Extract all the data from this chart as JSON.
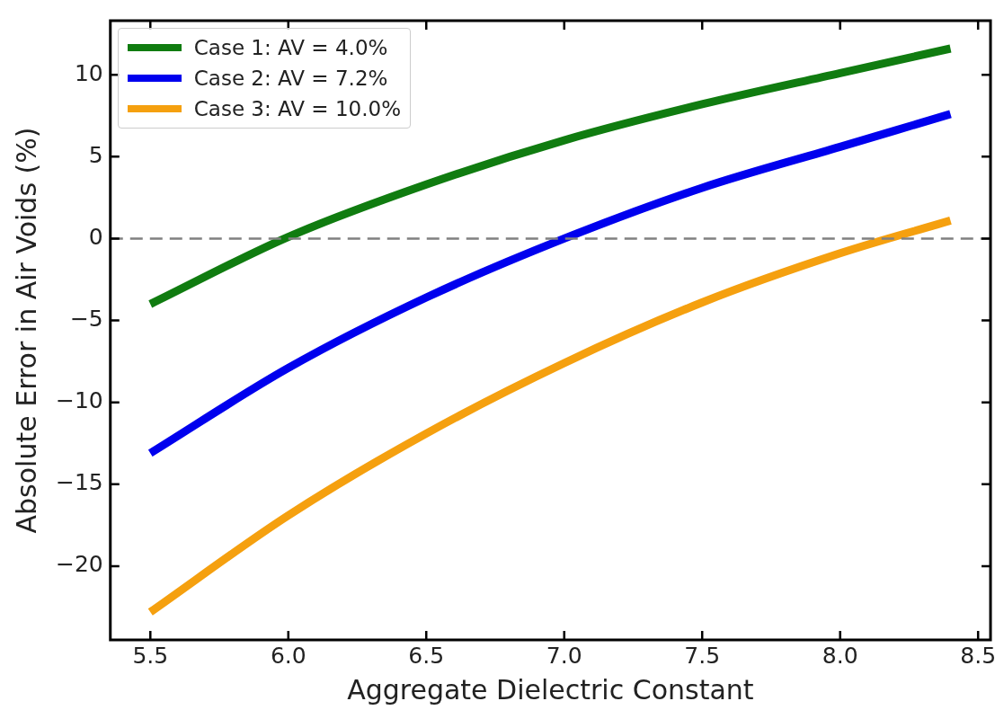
{
  "chart_data": {
    "type": "line",
    "xlabel": "Aggregate Dielectric Constant",
    "ylabel": "Absolute Error in Air Voids (%)",
    "x": [
      5.5,
      6.0,
      6.5,
      7.0,
      7.5,
      8.0,
      8.4
    ],
    "series": [
      {
        "name": "Case 1: AV = 4.0%",
        "color": "#107c10",
        "values": [
          -4.0,
          0.1,
          3.3,
          6.0,
          8.2,
          10.1,
          11.6
        ]
      },
      {
        "name": "Case 2: AV = 7.2%",
        "color": "#0000ee",
        "values": [
          -13.1,
          -7.9,
          -3.6,
          0.0,
          3.1,
          5.6,
          7.6
        ]
      },
      {
        "name": "Case 3: AV = 10.0%",
        "color": "#f5a00f",
        "values": [
          -22.8,
          -16.9,
          -11.9,
          -7.6,
          -3.9,
          -0.9,
          1.1
        ]
      }
    ],
    "xlim": [
      5.355,
      8.545
    ],
    "xticks": [
      {
        "value": 5.5,
        "label": "5.5"
      },
      {
        "value": 6.0,
        "label": "6.0"
      },
      {
        "value": 6.5,
        "label": "6.5"
      },
      {
        "value": 7.0,
        "label": "7.0"
      },
      {
        "value": 7.5,
        "label": "7.5"
      },
      {
        "value": 8.0,
        "label": "8.0"
      },
      {
        "value": 8.5,
        "label": "8.5"
      }
    ],
    "ylim": [
      -24.5,
      13.3
    ],
    "yticks": [
      {
        "value": -20,
        "label": "−20"
      },
      {
        "value": -15,
        "label": "−15"
      },
      {
        "value": -10,
        "label": "−10"
      },
      {
        "value": -5,
        "label": "−5"
      },
      0,
      5,
      10
    ],
    "ref_lines": [
      {
        "axis": "y",
        "value": 0,
        "color": "#808080",
        "line_style": "dashed"
      }
    ],
    "legend": "top left",
    "grid": false,
    "marker": "none",
    "line_style": "solid"
  }
}
